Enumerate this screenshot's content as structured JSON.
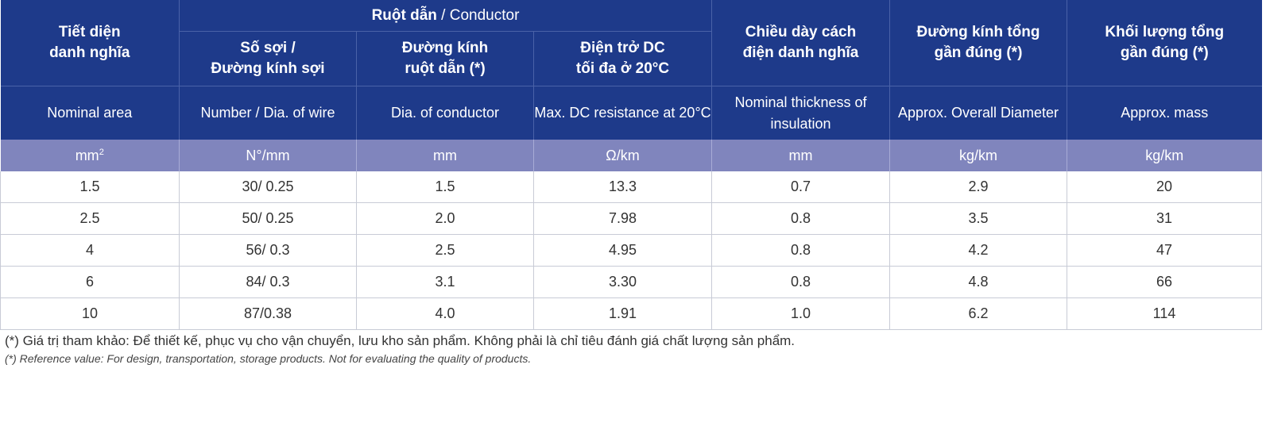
{
  "header": {
    "nominal_area": [
      "Tiết diện",
      "danh nghĩa"
    ],
    "conductor_group_vi": "Ruột dẫn",
    "conductor_group_sep": " / ",
    "conductor_group_en": "Conductor",
    "number_wire": [
      "Số sợi /",
      "Đường kính sợi"
    ],
    "dia_conductor": [
      "Đường kính",
      "ruột dẫn (*)"
    ],
    "dc_resistance": [
      "Điện trở DC",
      "tối đa ở 20°C"
    ],
    "insulation": [
      "Chiều dày cách",
      "điện danh nghĩa"
    ],
    "overall_dia": [
      "Đường kính tổng",
      "gần đúng (*)"
    ],
    "mass": [
      "Khối lượng tổng",
      "gần đúng (*)"
    ]
  },
  "english_labels": {
    "nominal_area": [
      "Nominal area"
    ],
    "number_wire": [
      "Number /",
      "Dia. of wire"
    ],
    "dia_conductor": [
      "Dia. of conductor"
    ],
    "dc_resistance": [
      "Max. DC",
      "resistance at 20°C"
    ],
    "insulation": [
      "Nominal thickness",
      "of insulation"
    ],
    "overall_dia": [
      "Approx.",
      "Overall Diameter"
    ],
    "mass": [
      "Approx. mass"
    ]
  },
  "units": {
    "area_base": "mm",
    "area_sup": "2",
    "number_wire": "N°/mm",
    "dia_conductor": "mm",
    "dc_resistance": "Ω/km",
    "insulation": "mm",
    "overall_dia": "kg/km",
    "mass": "kg/km"
  },
  "rows": [
    [
      "1.5",
      "30/ 0.25",
      "1.5",
      "13.3",
      "0.7",
      "2.9",
      "20"
    ],
    [
      "2.5",
      "50/ 0.25",
      "2.0",
      "7.98",
      "0.8",
      "3.5",
      "31"
    ],
    [
      "4",
      "56/ 0.3",
      "2.5",
      "4.95",
      "0.8",
      "4.2",
      "47"
    ],
    [
      "6",
      "84/ 0.3",
      "3.1",
      "3.30",
      "0.8",
      "4.8",
      "66"
    ],
    [
      "10",
      "87/0.38",
      "4.0",
      "1.91",
      "1.0",
      "6.2",
      "114"
    ]
  ],
  "notes": {
    "vi": "(*) Giá trị tham khảo: Để thiết kế, phục vụ cho vận chuyển, lưu kho sản phẩm. Không phải là chỉ tiêu đánh giá chất lượng sản phẩm.",
    "en": "(*) Reference value: For design, transportation, storage products. Not for evaluating the quality of products."
  },
  "colors": {
    "header_bg": "#1e3a8a",
    "unit_row_bg": "#8085bd",
    "text": "#333333"
  }
}
